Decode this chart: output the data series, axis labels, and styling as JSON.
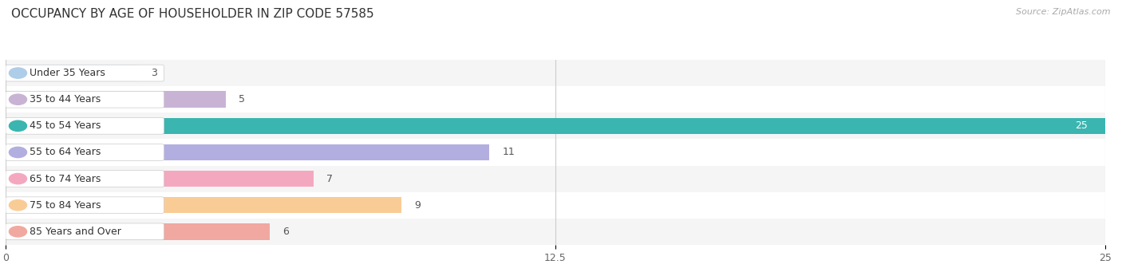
{
  "title": "OCCUPANCY BY AGE OF HOUSEHOLDER IN ZIP CODE 57585",
  "source": "Source: ZipAtlas.com",
  "categories": [
    "Under 35 Years",
    "35 to 44 Years",
    "45 to 54 Years",
    "55 to 64 Years",
    "65 to 74 Years",
    "75 to 84 Years",
    "85 Years and Over"
  ],
  "values": [
    3,
    5,
    25,
    11,
    7,
    9,
    6
  ],
  "bar_colors": [
    "#aecde8",
    "#c9b3d5",
    "#3ab5b0",
    "#b3aee0",
    "#f4a8c0",
    "#f9cc96",
    "#f0a8a0"
  ],
  "xlim": [
    0,
    25
  ],
  "xticks": [
    0,
    12.5,
    25
  ],
  "bg_color": "#ffffff",
  "row_bg_even": "#f5f5f5",
  "row_bg_odd": "#ffffff",
  "title_fontsize": 11,
  "source_fontsize": 8,
  "label_fontsize": 9,
  "value_fontsize": 9,
  "bar_height": 0.62
}
